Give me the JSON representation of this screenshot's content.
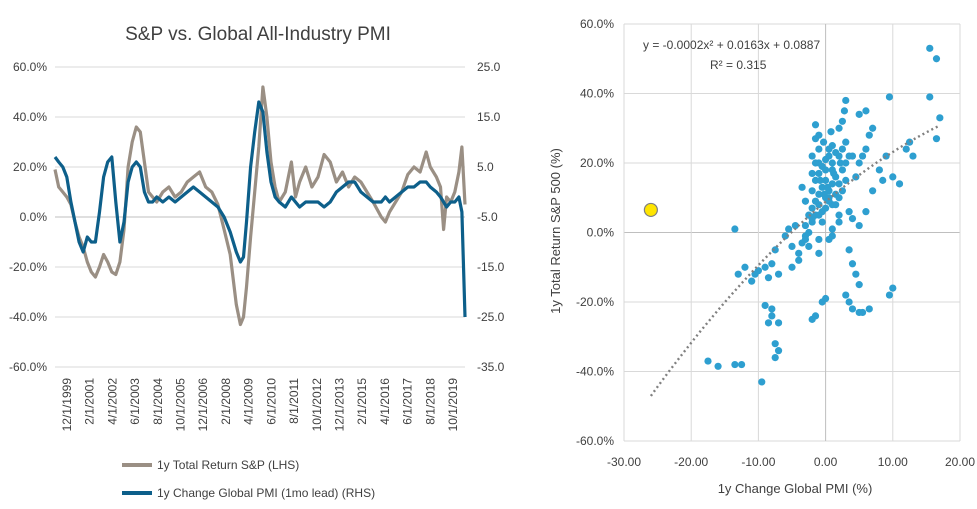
{
  "chart_data": [
    {
      "type": "line",
      "title": "S&P vs. Global All-Industry PMI",
      "x_tick_labels": [
        "12/1/1999",
        "2/1/2001",
        "4/1/2002",
        "6/1/2003",
        "8/1/2004",
        "10/1/2005",
        "12/1/2006",
        "2/1/2008",
        "4/1/2009",
        "6/1/2010",
        "8/1/2011",
        "10/1/2012",
        "12/1/2013",
        "2/1/2015",
        "4/1/2016",
        "6/1/2017",
        "8/1/2018",
        "10/1/2019"
      ],
      "x_range": [
        1999.92,
        2020.0
      ],
      "y_left": {
        "range": [
          -60,
          60
        ],
        "ticks": [
          "-60.0%",
          "-40.0%",
          "-20.0%",
          "0.0%",
          "20.0%",
          "40.0%",
          "60.0%"
        ]
      },
      "y_right": {
        "range": [
          -35,
          25
        ],
        "ticks": [
          "-35.0",
          "-25.0",
          "-15.0",
          "-5.0",
          "5.0",
          "15.0",
          "25.0"
        ]
      },
      "legend_position": "bottom",
      "series": [
        {
          "name": "1y Total Return S&P (LHS)",
          "axis": "left",
          "color": "#9a8f84",
          "x": [
            1999.92,
            2000.1,
            2000.3,
            2000.5,
            2000.7,
            2000.9,
            2001.1,
            2001.3,
            2001.5,
            2001.7,
            2001.9,
            2002.1,
            2002.3,
            2002.5,
            2002.7,
            2002.9,
            2003.1,
            2003.3,
            2003.5,
            2003.7,
            2003.9,
            2004.1,
            2004.3,
            2004.5,
            2004.7,
            2004.9,
            2005.2,
            2005.5,
            2005.8,
            2006.1,
            2006.4,
            2006.7,
            2007.0,
            2007.3,
            2007.6,
            2007.9,
            2008.2,
            2008.5,
            2008.8,
            2009.0,
            2009.15,
            2009.3,
            2009.5,
            2009.7,
            2009.9,
            2010.1,
            2010.3,
            2010.5,
            2010.7,
            2010.9,
            2011.2,
            2011.5,
            2011.7,
            2011.9,
            2012.2,
            2012.5,
            2012.8,
            2013.1,
            2013.4,
            2013.7,
            2014.0,
            2014.3,
            2014.6,
            2014.9,
            2015.2,
            2015.5,
            2015.7,
            2015.9,
            2016.1,
            2016.3,
            2016.6,
            2016.9,
            2017.2,
            2017.5,
            2017.8,
            2018.1,
            2018.3,
            2018.6,
            2018.8,
            2018.95,
            2019.1,
            2019.3,
            2019.5,
            2019.7,
            2019.85,
            2020.0
          ],
          "y": [
            19,
            12,
            10,
            8,
            5,
            -2,
            -8,
            -12,
            -18,
            -22,
            -24,
            -20,
            -15,
            -18,
            -22,
            -23,
            -18,
            -5,
            20,
            30,
            36,
            34,
            22,
            10,
            8,
            6,
            10,
            12,
            8,
            10,
            14,
            16,
            18,
            12,
            10,
            5,
            -5,
            -15,
            -35,
            -43,
            -40,
            -28,
            -8,
            10,
            28,
            52,
            40,
            22,
            12,
            6,
            10,
            22,
            8,
            14,
            20,
            12,
            16,
            25,
            22,
            14,
            18,
            12,
            16,
            14,
            10,
            6,
            3,
            0,
            -2,
            2,
            6,
            10,
            17,
            20,
            18,
            26,
            20,
            16,
            12,
            -5,
            8,
            6,
            10,
            18,
            28,
            5
          ]
        },
        {
          "name": "1y Change Global PMI (1mo lead) (RHS)",
          "axis": "right",
          "color": "#0d5f8a",
          "x": [
            1999.92,
            2000.1,
            2000.3,
            2000.5,
            2000.7,
            2000.9,
            2001.1,
            2001.3,
            2001.5,
            2001.7,
            2001.9,
            2002.1,
            2002.3,
            2002.5,
            2002.7,
            2002.9,
            2003.1,
            2003.3,
            2003.5,
            2003.7,
            2003.9,
            2004.1,
            2004.3,
            2004.5,
            2004.7,
            2004.9,
            2005.2,
            2005.5,
            2005.8,
            2006.1,
            2006.4,
            2006.7,
            2007.0,
            2007.3,
            2007.6,
            2007.9,
            2008.2,
            2008.5,
            2008.8,
            2009.0,
            2009.15,
            2009.3,
            2009.5,
            2009.7,
            2009.9,
            2010.1,
            2010.3,
            2010.5,
            2010.7,
            2010.9,
            2011.2,
            2011.5,
            2011.7,
            2011.9,
            2012.2,
            2012.5,
            2012.8,
            2013.1,
            2013.4,
            2013.7,
            2014.0,
            2014.3,
            2014.6,
            2014.9,
            2015.2,
            2015.5,
            2015.7,
            2015.9,
            2016.1,
            2016.3,
            2016.6,
            2016.9,
            2017.2,
            2017.5,
            2017.8,
            2018.1,
            2018.3,
            2018.6,
            2018.8,
            2018.95,
            2019.1,
            2019.3,
            2019.5,
            2019.7,
            2019.85,
            2020.0
          ],
          "y": [
            7,
            6,
            5,
            3,
            -2,
            -6,
            -10,
            -12,
            -9,
            -10,
            -10,
            -4,
            3,
            6,
            7,
            -2,
            -10,
            -6,
            2,
            5,
            6,
            5,
            0,
            -2,
            -2,
            -1,
            -2,
            -1,
            -2,
            -1,
            0,
            1,
            0,
            -1,
            -2,
            -3,
            -5,
            -8,
            -12,
            -14,
            -13,
            -6,
            5,
            12,
            18,
            16,
            8,
            2,
            -1,
            -2,
            -3,
            -1,
            -2,
            -3,
            -2,
            -2,
            -2,
            -3,
            -2,
            0,
            1,
            2,
            2,
            0,
            -1,
            -2,
            -2,
            -2,
            -1,
            -2,
            -1,
            0,
            1,
            1,
            2,
            2,
            1,
            0,
            -1,
            -2,
            -3,
            -2,
            -2,
            -1,
            -4,
            -25
          ]
        }
      ]
    },
    {
      "type": "scatter",
      "xlabel": "1y Change Global PMI (%)",
      "ylabel": "1y Total Return S&P 500 (%)",
      "xlim": [
        -30,
        20
      ],
      "ylim": [
        -60,
        60
      ],
      "x_ticks": [
        "-30.00",
        "-20.00",
        "-10.00",
        "0.00",
        "10.00",
        "20.00"
      ],
      "y_ticks": [
        "-60.0%",
        "-40.0%",
        "-20.0%",
        "0.0%",
        "20.0%",
        "40.0%",
        "60.0%"
      ],
      "equation": "y = -0.0002x² + 0.0163x + 0.0887",
      "r_squared": "R² = 0.315",
      "point_color": "#2e9fd0",
      "trend_color": "#808080",
      "trendline": {
        "a": -0.0002,
        "b": 0.0163,
        "c": 0.0887,
        "x_from": -26,
        "x_to": 17
      },
      "highlight": {
        "x": -26,
        "y": 6.5,
        "color": "#ffe500"
      },
      "points": [
        [
          -17.5,
          -37
        ],
        [
          -16,
          -38.5
        ],
        [
          -13.5,
          -38
        ],
        [
          -12.5,
          -38
        ],
        [
          -9.5,
          -43
        ],
        [
          -13.5,
          1
        ],
        [
          -13,
          -12
        ],
        [
          -12,
          -10
        ],
        [
          -11,
          -14
        ],
        [
          -10.5,
          -12
        ],
        [
          -10,
          -11
        ],
        [
          -9,
          -10
        ],
        [
          -8.5,
          -13
        ],
        [
          -8,
          -9
        ],
        [
          -7.5,
          -5
        ],
        [
          -7,
          -12
        ],
        [
          -9,
          -21
        ],
        [
          -8,
          -22
        ],
        [
          -8.5,
          -26
        ],
        [
          -8,
          -24
        ],
        [
          -7,
          -26
        ],
        [
          -7.5,
          -32
        ],
        [
          -7.5,
          -36
        ],
        [
          -7,
          -34
        ],
        [
          -6,
          -1
        ],
        [
          -5.5,
          1
        ],
        [
          -5,
          -4
        ],
        [
          -4.5,
          2
        ],
        [
          -4,
          -6
        ],
        [
          -3.5,
          -3
        ],
        [
          -3,
          -1
        ],
        [
          -2.5,
          0
        ],
        [
          -2,
          3
        ],
        [
          -1.5,
          5
        ],
        [
          -1,
          -2
        ],
        [
          -1,
          -6
        ],
        [
          -1.5,
          -24
        ],
        [
          -0.5,
          -20
        ],
        [
          0,
          -19
        ],
        [
          -2.5,
          -4
        ],
        [
          -3,
          2
        ],
        [
          -2,
          4
        ],
        [
          -1,
          8
        ],
        [
          -0.5,
          6
        ],
        [
          0,
          10
        ],
        [
          0.5,
          12
        ],
        [
          1,
          14
        ],
        [
          1.5,
          8
        ],
        [
          2,
          10
        ],
        [
          2.5,
          12
        ],
        [
          3,
          15
        ],
        [
          -2,
          12
        ],
        [
          -1.5,
          15
        ],
        [
          -1,
          17
        ],
        [
          -0.5,
          19
        ],
        [
          0,
          21
        ],
        [
          0.5,
          22
        ],
        [
          1,
          18
        ],
        [
          1.5,
          16
        ],
        [
          2,
          14
        ],
        [
          2.5,
          18
        ],
        [
          3,
          20
        ],
        [
          3.5,
          22
        ],
        [
          -1,
          20
        ],
        [
          0,
          18
        ],
        [
          1,
          20
        ],
        [
          2,
          22
        ],
        [
          0,
          15
        ],
        [
          -0.5,
          13
        ],
        [
          0.5,
          10
        ],
        [
          1,
          8
        ],
        [
          1.5,
          11
        ],
        [
          -1.5,
          9
        ],
        [
          -1,
          11
        ],
        [
          -2,
          7
        ],
        [
          -2.5,
          5
        ],
        [
          -3,
          9
        ],
        [
          -3.5,
          13
        ],
        [
          -2,
          17
        ],
        [
          -1.5,
          20
        ],
        [
          0.5,
          24
        ],
        [
          1,
          25
        ],
        [
          1.5,
          23
        ],
        [
          2.5,
          24
        ],
        [
          3,
          26
        ],
        [
          4,
          22
        ],
        [
          4.5,
          16
        ],
        [
          5,
          20
        ],
        [
          5.5,
          22
        ],
        [
          6,
          24
        ],
        [
          6.5,
          28
        ],
        [
          7,
          30
        ],
        [
          -1,
          24
        ],
        [
          -1.5,
          27
        ],
        [
          -1,
          28
        ],
        [
          2,
          30
        ],
        [
          3,
          38
        ],
        [
          2.5,
          32
        ],
        [
          5,
          34
        ],
        [
          6,
          35
        ],
        [
          8,
          18
        ],
        [
          8.5,
          15
        ],
        [
          9,
          22
        ],
        [
          10,
          16
        ],
        [
          11,
          14
        ],
        [
          12,
          24
        ],
        [
          13,
          22
        ],
        [
          12.5,
          26
        ],
        [
          15.5,
          53
        ],
        [
          16.5,
          50
        ],
        [
          15.5,
          39
        ],
        [
          17,
          33
        ],
        [
          16.5,
          27
        ],
        [
          9.5,
          39
        ],
        [
          3.5,
          -5
        ],
        [
          4,
          -9
        ],
        [
          4.5,
          -12
        ],
        [
          5,
          -15
        ],
        [
          3,
          -18
        ],
        [
          3.5,
          -20
        ],
        [
          4,
          -22
        ],
        [
          5,
          -23
        ],
        [
          5.5,
          -23
        ],
        [
          6.5,
          -22
        ],
        [
          9.5,
          -18
        ],
        [
          10,
          -16
        ],
        [
          -2,
          -25
        ],
        [
          -3,
          -2
        ],
        [
          -4,
          -8
        ],
        [
          -5,
          -10
        ],
        [
          0.5,
          -2
        ],
        [
          1,
          1
        ],
        [
          2,
          3
        ],
        [
          4,
          4
        ],
        [
          6,
          6
        ],
        [
          7,
          12
        ],
        [
          5,
          2
        ],
        [
          3.5,
          6
        ],
        [
          2,
          5
        ],
        [
          1,
          -1
        ],
        [
          -0.5,
          3
        ],
        [
          -1,
          5
        ],
        [
          0,
          7
        ],
        [
          0.5,
          9
        ],
        [
          -0.2,
          11
        ],
        [
          0.3,
          13
        ],
        [
          -0.8,
          15
        ],
        [
          1.2,
          17
        ],
        [
          -2,
          22
        ],
        [
          2.2,
          20
        ],
        [
          -0.3,
          26
        ],
        [
          0.8,
          29
        ],
        [
          2.8,
          35
        ],
        [
          -1.5,
          31
        ]
      ]
    }
  ]
}
